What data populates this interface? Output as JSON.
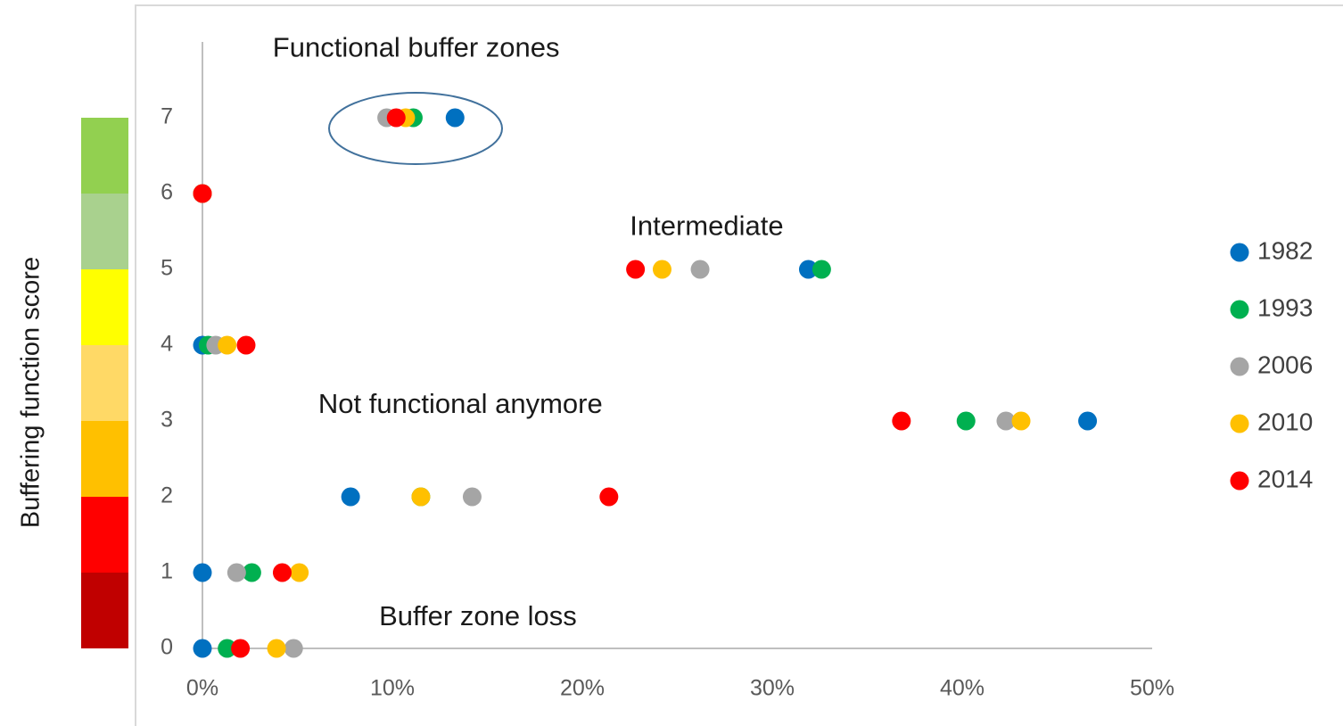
{
  "chart_data": {
    "type": "scatter",
    "y_label": "Buffering function score",
    "xlim": [
      0,
      50
    ],
    "xticks": [
      {
        "value": 0,
        "label": "0%"
      },
      {
        "value": 10,
        "label": "10%"
      },
      {
        "value": 20,
        "label": "20%"
      },
      {
        "value": 30,
        "label": "30%"
      },
      {
        "value": 40,
        "label": "40%"
      },
      {
        "value": 50,
        "label": "50%"
      }
    ],
    "ylim": [
      0,
      8
    ],
    "yticks": [
      0,
      1,
      2,
      3,
      4,
      5,
      6,
      7
    ],
    "score_colors": [
      "#c00000",
      "#ff0000",
      "#ffc000",
      "#ffd966",
      "#ffff00",
      "#a9d18e",
      "#92d050"
    ],
    "annotations": [
      {
        "text": "Functional buffer zones",
        "x": 3.7,
        "y": 7.9
      },
      {
        "text": "Intermediate",
        "x": 22.5,
        "y": 5.55
      },
      {
        "text": "Not functional anymore",
        "x": 6.1,
        "y": 3.2
      },
      {
        "text": "Buffer zone loss",
        "x": 9.3,
        "y": 0.4
      }
    ],
    "legend": "right",
    "series": [
      {
        "name": "1982",
        "color": "#0070c0",
        "x": [
          0,
          0,
          7.8,
          46.6,
          0,
          31.9,
          0,
          13.3
        ],
        "values": [
          0,
          1,
          2,
          3,
          4,
          5,
          6,
          7
        ]
      },
      {
        "name": "1993",
        "color": "#00b050",
        "x": [
          1.3,
          2.6,
          11.5,
          40.2,
          0.3,
          32.6,
          0,
          11.1
        ],
        "values": [
          0,
          1,
          2,
          3,
          4,
          5,
          6,
          7
        ]
      },
      {
        "name": "2006",
        "color": "#a5a5a5",
        "x": [
          4.8,
          1.8,
          14.2,
          42.3,
          0.7,
          26.2,
          0,
          9.7
        ],
        "values": [
          0,
          1,
          2,
          3,
          4,
          5,
          6,
          7
        ]
      },
      {
        "name": "2010",
        "color": "#ffc000",
        "x": [
          3.9,
          5.1,
          11.5,
          43.1,
          1.3,
          24.2,
          0,
          10.7
        ],
        "values": [
          0,
          1,
          2,
          3,
          4,
          5,
          6,
          7
        ]
      },
      {
        "name": "2014",
        "color": "#ff0000",
        "x": [
          2.0,
          4.2,
          21.4,
          36.8,
          2.3,
          22.8,
          0,
          10.2
        ],
        "values": [
          0,
          1,
          2,
          3,
          4,
          5,
          6,
          7
        ]
      }
    ]
  }
}
